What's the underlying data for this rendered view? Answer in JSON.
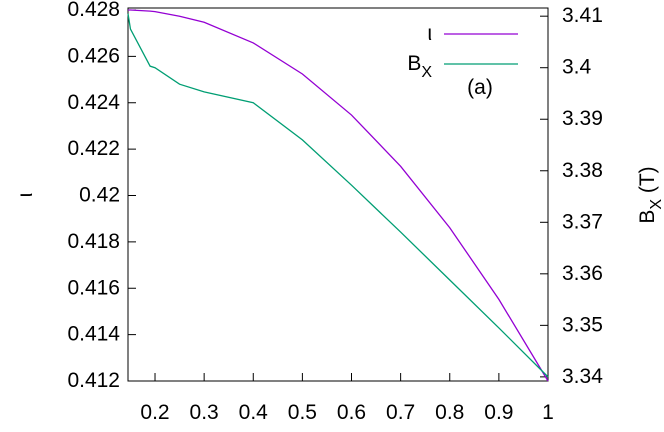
{
  "chart_data": {
    "type": "line",
    "ylabel": "ι",
    "y2label": "B_X (T)",
    "annotation": "(a)",
    "x": [
      0.145,
      0.15,
      0.19,
      0.2,
      0.25,
      0.3,
      0.4,
      0.5,
      0.6,
      0.7,
      0.8,
      0.9,
      1.0
    ],
    "series": [
      {
        "name": "ι",
        "color": "#9400d3",
        "values": [
          0.428,
          0.428,
          0.42795,
          0.42793,
          0.42773,
          0.42747,
          0.42658,
          0.42524,
          0.42347,
          0.42126,
          0.41861,
          0.41552,
          0.412
        ]
      },
      {
        "name": "B_X",
        "color": "#009e73",
        "axis": "y2",
        "values": [
          3.4105,
          3.4075,
          3.4003,
          3.4,
          3.3968,
          3.3953,
          3.3932,
          3.386,
          3.3772,
          3.3681,
          3.3588,
          3.3495,
          3.34
        ]
      }
    ],
    "xlim": [
      0.145,
      1.0
    ],
    "xticks": [
      0.2,
      0.3,
      0.4,
      0.5,
      0.6,
      0.7,
      0.8,
      0.9,
      1
    ],
    "ylim": [
      0.412,
      0.428
    ],
    "yticks": [
      0.412,
      0.414,
      0.416,
      0.418,
      0.42,
      0.422,
      0.424,
      0.426,
      0.428
    ],
    "y2lim": [
      3.3392,
      3.4112
    ],
    "y2ticks": [
      3.34,
      3.35,
      3.36,
      3.37,
      3.38,
      3.39,
      3.4,
      3.41
    ]
  }
}
